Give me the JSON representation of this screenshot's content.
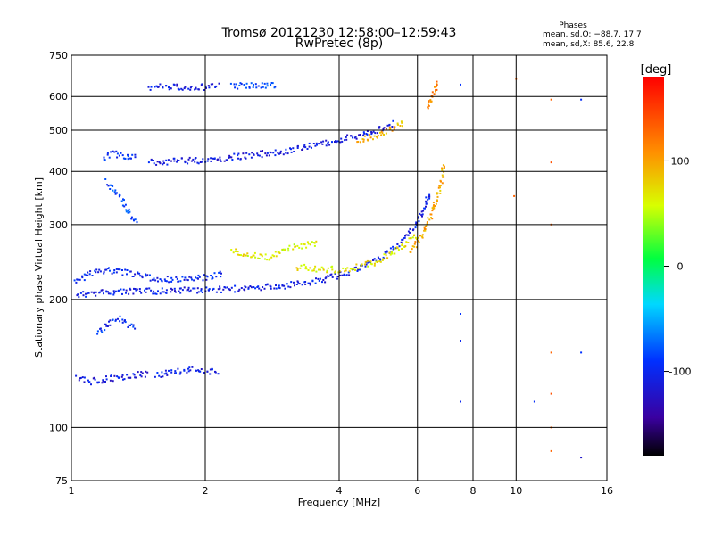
{
  "chart_data": {
    "type": "scatter",
    "title": "Tromsø 20121230 12:58:00–12:59:43",
    "subtitle": "RwPretec (8p)",
    "xlabel": "Frequency [MHz]",
    "ylabel": "Stationary phase Virtual Height [km]",
    "x_scale": "log",
    "y_scale": "log",
    "xlim": [
      1,
      16
    ],
    "ylim": [
      75,
      750
    ],
    "x_ticks": [
      1,
      2,
      4,
      6,
      8,
      10,
      16
    ],
    "x_tick_labels": [
      "1",
      "2",
      "4",
      "6",
      "8",
      "10",
      "16"
    ],
    "y_ticks": [
      75,
      100,
      200,
      300,
      400,
      500,
      600,
      750
    ],
    "y_tick_labels": [
      "75",
      "100",
      "200",
      "300",
      "400",
      "500",
      "600",
      "750"
    ],
    "grid": true,
    "phase_info": {
      "heading": "Phases",
      "o_line": "mean, sd,O: −88.7, 17.7",
      "x_line": "mean, sd,X:  85.6, 22.8"
    },
    "colorbar": {
      "label": "[deg]",
      "range": [
        -180,
        180
      ],
      "ticks": [
        100,
        0,
        -100
      ],
      "tick_labels": [
        "100",
        "0",
        "-100"
      ]
    },
    "traces": [
      {
        "x": [
          1.03,
          1.2,
          1.5,
          1.8,
          2.1,
          2.5,
          3.0,
          3.5,
          4.0,
          4.5,
          5.0,
          5.5,
          5.9,
          6.2,
          6.4
        ],
        "y": [
          205,
          208,
          209,
          210,
          211,
          212,
          215,
          220,
          228,
          238,
          252,
          272,
          295,
          325,
          360
        ],
        "phase": -105
      },
      {
        "x": [
          1.03,
          1.1,
          1.2,
          1.35,
          1.5
        ],
        "y": [
          130,
          128,
          130,
          132,
          134
        ],
        "phase": -110
      },
      {
        "x": [
          1.55,
          1.7,
          1.85,
          2.0,
          2.15
        ],
        "y": [
          133,
          135,
          137,
          136,
          134
        ],
        "phase": -105
      },
      {
        "x": [
          1.15,
          1.2,
          1.3,
          1.4
        ],
        "y": [
          165,
          175,
          180,
          170
        ],
        "phase": -95
      },
      {
        "x": [
          1.02,
          1.1,
          1.2,
          1.3,
          1.4,
          1.5,
          1.7,
          2.0,
          2.2
        ],
        "y": [
          220,
          230,
          235,
          232,
          228,
          225,
          222,
          225,
          230
        ],
        "phase": -100
      },
      {
        "x": [
          1.2,
          1.25,
          1.3,
          1.35,
          1.4
        ],
        "y": [
          380,
          360,
          340,
          320,
          300
        ],
        "phase": -85
      },
      {
        "x": [
          1.18,
          1.25,
          1.3,
          1.35,
          1.4
        ],
        "y": [
          430,
          440,
          435,
          428,
          432
        ],
        "phase": -95
      },
      {
        "x": [
          1.5,
          1.7,
          2.0,
          2.3,
          2.6,
          3.0,
          3.4,
          3.8,
          4.2,
          4.6,
          5.0,
          5.3
        ],
        "y": [
          420,
          422,
          425,
          432,
          438,
          446,
          458,
          468,
          480,
          492,
          505,
          520
        ],
        "phase": -110
      },
      {
        "x": [
          4.4,
          4.7,
          5.0,
          5.3,
          5.6
        ],
        "y": [
          470,
          480,
          492,
          505,
          522
        ],
        "phase": 95
      },
      {
        "x": [
          1.5,
          1.65,
          1.8,
          2.0,
          2.15
        ],
        "y": [
          628,
          632,
          630,
          632,
          635
        ],
        "phase": -110
      },
      {
        "x": [
          2.3,
          2.5,
          2.7,
          2.9
        ],
        "y": [
          635,
          636,
          638,
          640
        ],
        "phase": -85
      },
      {
        "x": [
          2.3,
          2.5,
          2.8,
          3.0,
          3.3,
          3.6
        ],
        "y": [
          260,
          255,
          250,
          262,
          268,
          270
        ],
        "phase": 65
      },
      {
        "x": [
          3.2,
          3.6,
          4.0,
          4.4,
          4.8,
          5.2,
          5.6,
          6.0
        ],
        "y": [
          238,
          236,
          235,
          238,
          244,
          255,
          268,
          285
        ],
        "phase": 70
      },
      {
        "x": [
          5.8,
          6.1,
          6.4,
          6.6,
          6.8,
          6.9
        ],
        "y": [
          260,
          280,
          310,
          340,
          380,
          420
        ],
        "phase": 95
      },
      {
        "x": [
          6.3,
          6.5,
          6.6,
          6.7
        ],
        "y": [
          560,
          600,
          630,
          650
        ],
        "phase": 115
      }
    ],
    "extra_points": [
      {
        "x": 10.0,
        "y": 660,
        "phase": 130
      },
      {
        "x": 12.0,
        "y": 590,
        "phase": 130
      },
      {
        "x": 12.0,
        "y": 420,
        "phase": 140
      },
      {
        "x": 12.0,
        "y": 300,
        "phase": 130
      },
      {
        "x": 12.0,
        "y": 150,
        "phase": 130
      },
      {
        "x": 12.0,
        "y": 120,
        "phase": 140
      },
      {
        "x": 12.0,
        "y": 100,
        "phase": 130
      },
      {
        "x": 12.0,
        "y": 88,
        "phase": 130
      },
      {
        "x": 7.5,
        "y": 185,
        "phase": -90
      },
      {
        "x": 7.5,
        "y": 160,
        "phase": -100
      },
      {
        "x": 7.5,
        "y": 115,
        "phase": -100
      },
      {
        "x": 11.0,
        "y": 115,
        "phase": -95
      },
      {
        "x": 14.0,
        "y": 590,
        "phase": -95
      },
      {
        "x": 14.0,
        "y": 150,
        "phase": -90
      },
      {
        "x": 14.0,
        "y": 85,
        "phase": -120
      },
      {
        "x": 7.5,
        "y": 640,
        "phase": -90
      },
      {
        "x": 9.9,
        "y": 350,
        "phase": 130
      }
    ]
  }
}
